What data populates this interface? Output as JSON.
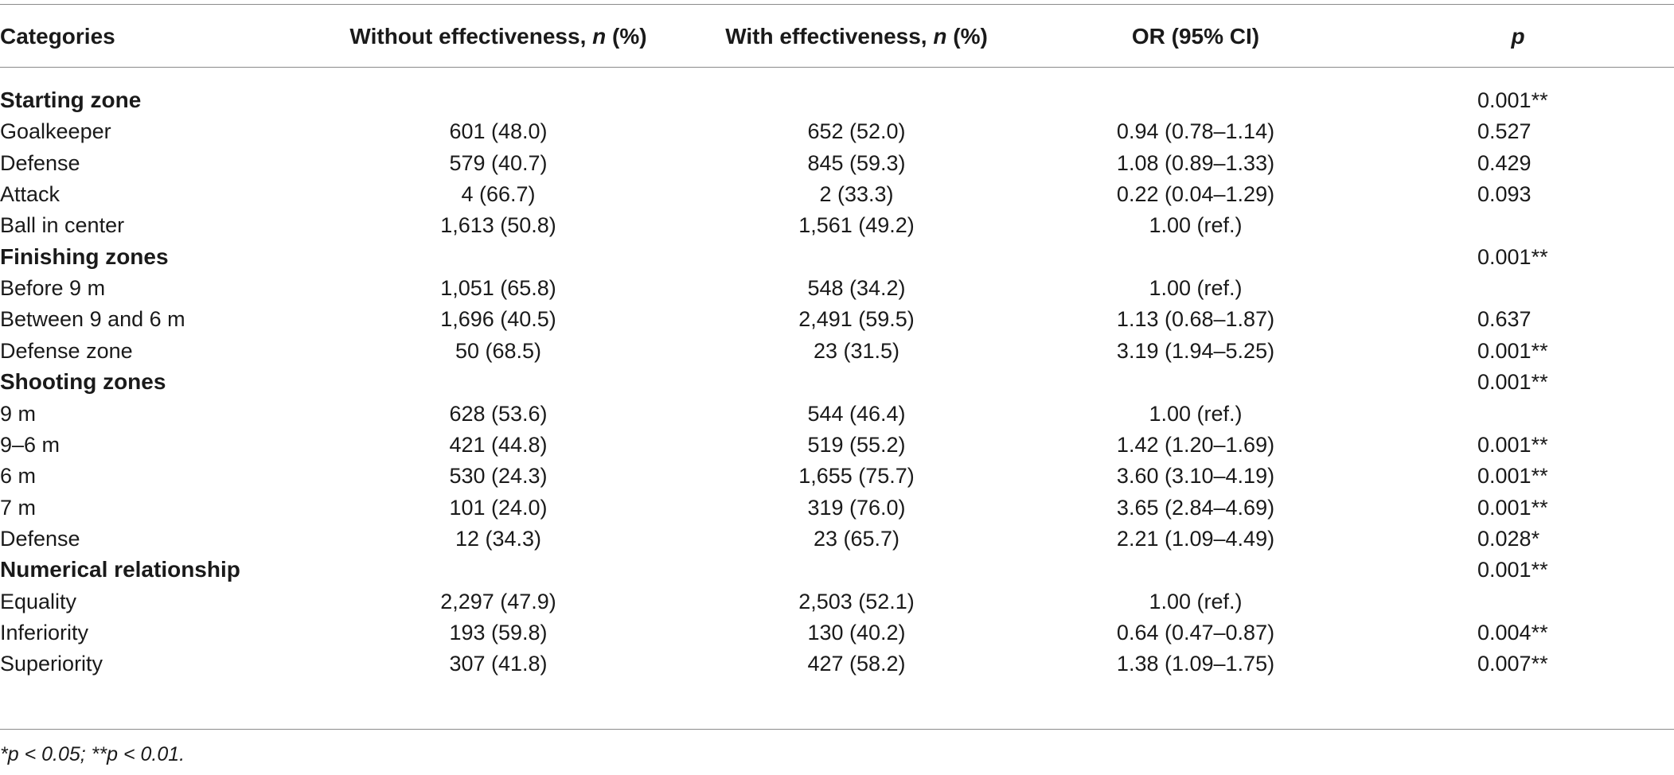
{
  "table": {
    "headers": {
      "categories": "Categories",
      "without_prefix": "Without effectiveness, ",
      "without_n": "n",
      "without_suffix": " (%)",
      "with_prefix": "With effectiveness, ",
      "with_n": "n",
      "with_suffix": " (%)",
      "or": "OR (95% CI)",
      "p": "p"
    },
    "rows": [
      {
        "label": "Starting zone",
        "without": "",
        "with": "",
        "or": "",
        "p": "0.001**"
      },
      {
        "label": "Goalkeeper",
        "without": "601 (48.0)",
        "with": "652 (52.0)",
        "or": "0.94 (0.78–1.14)",
        "p": "0.527"
      },
      {
        "label": "Defense",
        "without": "579 (40.7)",
        "with": "845 (59.3)",
        "or": "1.08 (0.89–1.33)",
        "p": "0.429"
      },
      {
        "label": "Attack",
        "without": "4 (66.7)",
        "with": "2 (33.3)",
        "or": "0.22 (0.04–1.29)",
        "p": "0.093"
      },
      {
        "label": "Ball in center",
        "without": "1,613 (50.8)",
        "with": "1,561 (49.2)",
        "or": "1.00 (ref.)",
        "p": ""
      },
      {
        "label": "Finishing zones",
        "without": "",
        "with": "",
        "or": "",
        "p": "0.001**"
      },
      {
        "label": "Before 9 m",
        "without": "1,051 (65.8)",
        "with": "548 (34.2)",
        "or": "1.00 (ref.)",
        "p": ""
      },
      {
        "label": "Between 9 and 6 m",
        "without": "1,696 (40.5)",
        "with": "2,491 (59.5)",
        "or": "1.13 (0.68–1.87)",
        "p": "0.637"
      },
      {
        "label": "Defense zone",
        "without": "50 (68.5)",
        "with": "23 (31.5)",
        "or": "3.19 (1.94–5.25)",
        "p": "0.001**"
      },
      {
        "label": "Shooting zones",
        "without": "",
        "with": "",
        "or": "",
        "p": "0.001**"
      },
      {
        "label": "9 m",
        "without": "628 (53.6)",
        "with": "544 (46.4)",
        "or": "1.00 (ref.)",
        "p": ""
      },
      {
        "label": "9–6 m",
        "without": "421 (44.8)",
        "with": "519 (55.2)",
        "or": "1.42 (1.20–1.69)",
        "p": "0.001**"
      },
      {
        "label": "6 m",
        "without": "530 (24.3)",
        "with": "1,655 (75.7)",
        "or": "3.60 (3.10–4.19)",
        "p": "0.001**"
      },
      {
        "label": "7 m",
        "without": "101 (24.0)",
        "with": "319 (76.0)",
        "or": "3.65 (2.84–4.69)",
        "p": "0.001**"
      },
      {
        "label": "Defense",
        "without": "12 (34.3)",
        "with": "23 (65.7)",
        "or": "2.21 (1.09–4.49)",
        "p": "0.028*"
      },
      {
        "label": "Numerical relationship",
        "without": "",
        "with": "",
        "or": "",
        "p": "0.001**"
      },
      {
        "label": "Equality",
        "without": "2,297 (47.9)",
        "with": "2,503 (52.1)",
        "or": "1.00 (ref.)",
        "p": ""
      },
      {
        "label": "Inferiority",
        "without": "193 (59.8)",
        "with": "130 (40.2)",
        "or": "0.64 (0.47–0.87)",
        "p": "0.004**"
      },
      {
        "label": "Superiority",
        "without": "307 (41.8)",
        "with": "427 (58.2)",
        "or": "1.38 (1.09–1.75)",
        "p": "0.007**"
      }
    ]
  },
  "footnote": "*p < 0.05; **p < 0.01."
}
